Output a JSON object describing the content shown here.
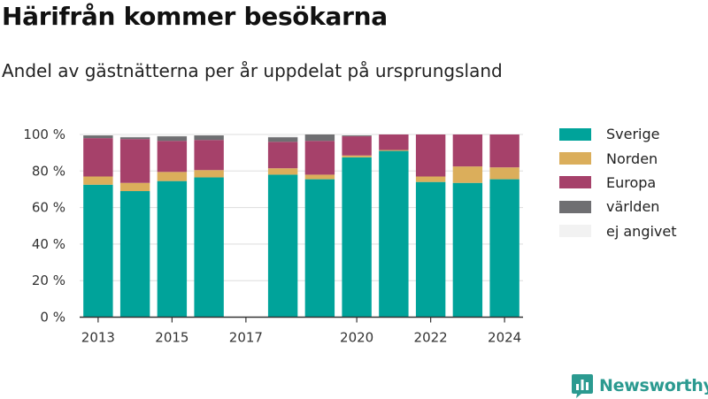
{
  "title": "Härifrån kommer besökarna",
  "subtitle": "Andel av gästnätterna per år uppdelat på ursprungsland",
  "brand": "Newsworthy",
  "colors": {
    "sverige": "#00a39a",
    "norden": "#dbae5b",
    "europa": "#a6416a",
    "varlden": "#6f6f72",
    "ej_angivet": "#f2f2f2",
    "axis": "#333333",
    "grid": "#dddddd",
    "brand": "#2b9a90"
  },
  "icons": {
    "logo": "bar-chart-logo-icon"
  },
  "chart_data": {
    "type": "bar",
    "stacked": true,
    "x": [
      2013,
      2014,
      2015,
      2016,
      2018,
      2019,
      2020,
      2021,
      2022,
      2023,
      2024
    ],
    "x_ticks": [
      "2013",
      "2015",
      "2017",
      "2020",
      "2022",
      "2024"
    ],
    "x_range": [
      2012.5,
      2024.5
    ],
    "y_ticks": [
      "0 %",
      "20 %",
      "40 %",
      "60 %",
      "80 %",
      "100 %"
    ],
    "ylim": [
      0,
      100
    ],
    "grid": true,
    "legend_position": "right",
    "series": [
      {
        "name": "Sverige",
        "color": "#00a39a",
        "values": [
          72.5,
          69,
          74.5,
          76.5,
          78,
          75.5,
          87.5,
          91,
          74,
          73.5,
          75.5
        ]
      },
      {
        "name": "Norden",
        "color": "#dbae5b",
        "values": [
          4.5,
          4.5,
          5,
          4,
          3.5,
          2.5,
          1,
          0.5,
          3,
          9,
          6.5
        ]
      },
      {
        "name": "Europa",
        "color": "#a6416a",
        "values": [
          21,
          24,
          17,
          16.5,
          14.5,
          18.5,
          10.5,
          8.5,
          23,
          17.5,
          18
        ]
      },
      {
        "name": "världen",
        "color": "#6f6f72",
        "values": [
          1.5,
          1,
          2.5,
          2.5,
          2.5,
          3.5,
          0.5,
          0,
          0,
          0,
          0
        ]
      },
      {
        "name": "ej angivet",
        "color": "#f2f2f2",
        "values": [
          0.5,
          1.5,
          1,
          0.5,
          1.5,
          0,
          0.5,
          0,
          0,
          0,
          0
        ]
      }
    ]
  }
}
